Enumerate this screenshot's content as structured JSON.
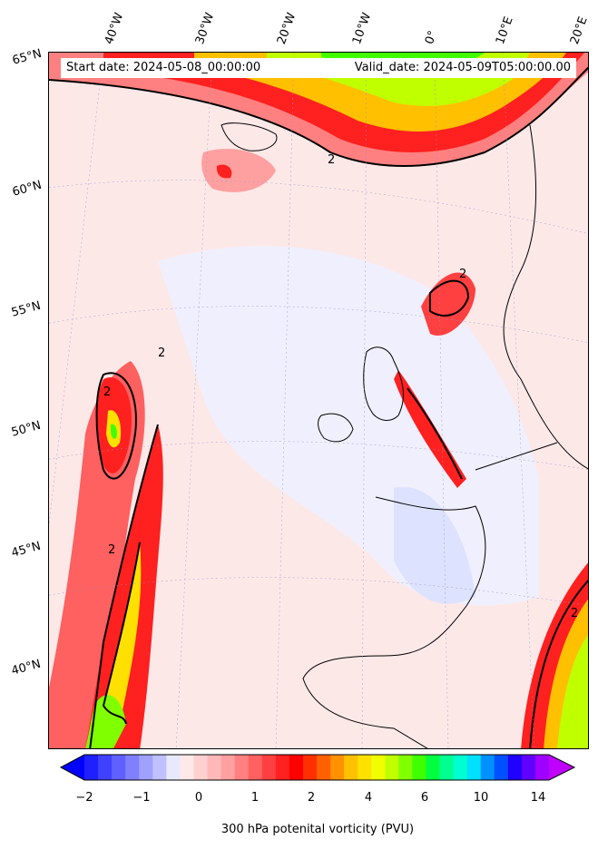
{
  "header": {
    "start_date": "Start date: 2024-05-08_00:00:00",
    "valid_date": "Valid_date: 2024-05-09T05:00:00.00"
  },
  "longitude_labels": [
    "40°W",
    "30°W",
    "20°W",
    "10°W",
    "0°",
    "10°E",
    "20°E"
  ],
  "latitude_labels": [
    "65°N",
    "60°N",
    "55°N",
    "50°N",
    "45°N",
    "40°N"
  ],
  "contour_label": "2",
  "colorbar": {
    "ticks": [
      "−2",
      "−1",
      "0",
      "1",
      "2",
      "4",
      "6",
      "10",
      "14"
    ],
    "label": "300 hPa potenital vorticity (PVU)",
    "colors": [
      "#0000ff",
      "#2020ff",
      "#4040ff",
      "#6060ff",
      "#8080ff",
      "#a0a0ff",
      "#c0c0ff",
      "#e8e8ff",
      "#ffe8e8",
      "#ffd0d0",
      "#ffb8b8",
      "#ffa0a0",
      "#ff8080",
      "#ff6060",
      "#ff4040",
      "#ff2020",
      "#ff0000",
      "#ff3000",
      "#ff6000",
      "#ff9000",
      "#ffc000",
      "#ffe000",
      "#f0ff00",
      "#c0ff00",
      "#80ff00",
      "#40ff00",
      "#00ff40",
      "#00ff90",
      "#00ffd0",
      "#00e0ff",
      "#0090ff",
      "#0050ff",
      "#2000ff",
      "#6000ff",
      "#a000ff",
      "#c000ff"
    ]
  }
}
